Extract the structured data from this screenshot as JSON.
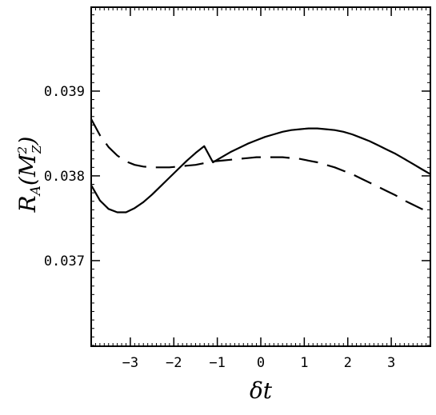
{
  "chart_data": {
    "type": "line",
    "xlabel": "δt",
    "ylabel": {
      "script": "R",
      "sub": "A",
      "open": "(M",
      "sup": "2",
      "sub2": "Z",
      "close": ")"
    },
    "xlim": [
      -3.9,
      3.9
    ],
    "ylim": [
      0.03599,
      0.03999
    ],
    "x_ticks": [
      -3,
      -2,
      -1,
      0,
      1,
      2,
      3
    ],
    "x_tick_labels": [
      "−3",
      "−2",
      "−1",
      "0",
      "1",
      "2",
      "3"
    ],
    "y_ticks": [
      0.037,
      0.038,
      0.039
    ],
    "y_tick_labels": [
      "0.037",
      "0.038",
      "0.039"
    ],
    "grid": false,
    "series": [
      {
        "style": "solid",
        "color": "#000000",
        "x": [
          -3.9,
          -3.7,
          -3.5,
          -3.3,
          -3.1,
          -2.9,
          -2.7,
          -2.5,
          -2.3,
          -2.1,
          -1.9,
          -1.7,
          -1.5,
          -1.3,
          -1.1,
          -0.9,
          -0.7,
          -0.5,
          -0.3,
          -0.1,
          0.1,
          0.3,
          0.5,
          0.7,
          0.9,
          1.1,
          1.3,
          1.5,
          1.7,
          1.9,
          2.1,
          2.3,
          2.5,
          2.7,
          2.9,
          3.1,
          3.3,
          3.5,
          3.7,
          3.9
        ],
        "y": [
          0.03789,
          0.03771,
          0.03761,
          0.03757,
          0.03757,
          0.03762,
          0.03769,
          0.03778,
          0.03788,
          0.03798,
          0.03808,
          0.03818,
          0.03827,
          0.03835,
          0.03816,
          0.03822,
          0.03828,
          0.03833,
          0.03838,
          0.03842,
          0.03846,
          0.03849,
          0.03852,
          0.03854,
          0.03855,
          0.03856,
          0.03856,
          0.03855,
          0.03854,
          0.03852,
          0.03849,
          0.03845,
          0.03841,
          0.03836,
          0.03831,
          0.03826,
          0.0382,
          0.03814,
          0.03808,
          0.03802
        ]
      },
      {
        "style": "dashed",
        "color": "#000000",
        "x": [
          -3.9,
          -3.7,
          -3.5,
          -3.3,
          -3.1,
          -2.9,
          -2.7,
          -2.5,
          -2.3,
          -2.1,
          -1.9,
          -1.7,
          -1.5,
          -1.3,
          -1.1,
          -0.9,
          -0.7,
          -0.5,
          -0.3,
          -0.1,
          0.1,
          0.3,
          0.5,
          0.7,
          0.9,
          1.1,
          1.3,
          1.5,
          1.7,
          1.9,
          2.1,
          2.3,
          2.5,
          2.7,
          2.9,
          3.1,
          3.3,
          3.5,
          3.7,
          3.9
        ],
        "y": [
          0.03867,
          0.03848,
          0.03834,
          0.03824,
          0.03817,
          0.03813,
          0.03811,
          0.0381,
          0.0381,
          0.0381,
          0.03811,
          0.03812,
          0.03813,
          0.03815,
          0.03817,
          0.03818,
          0.03819,
          0.0382,
          0.03821,
          0.03822,
          0.03822,
          0.03822,
          0.03822,
          0.03821,
          0.0382,
          0.03818,
          0.03816,
          0.03813,
          0.0381,
          0.03806,
          0.03802,
          0.03797,
          0.03792,
          0.03787,
          0.03782,
          0.03777,
          0.03771,
          0.03766,
          0.03761,
          0.03757
        ]
      }
    ]
  }
}
